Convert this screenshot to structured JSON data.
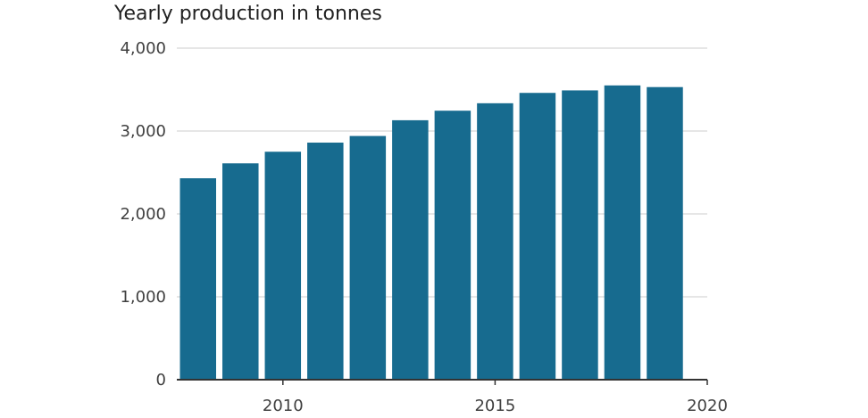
{
  "chart_data": {
    "type": "bar",
    "title": "Yearly production in tonnes",
    "xlabel": "",
    "ylabel": "",
    "categories": [
      "2008",
      "2009",
      "2010",
      "2011",
      "2012",
      "2013",
      "2014",
      "2015",
      "2016",
      "2017",
      "2018",
      "2019"
    ],
    "values": [
      2430,
      2610,
      2750,
      2860,
      2940,
      3130,
      3245,
      3335,
      3460,
      3490,
      3550,
      3530
    ],
    "ylim": [
      0,
      4000
    ],
    "yticks": [
      0,
      1000,
      2000,
      3000,
      4000
    ],
    "ytick_labels": [
      "0",
      "1,000",
      "2,000",
      "3,000",
      "4,000"
    ],
    "xticks": [
      2010,
      2015,
      2020
    ],
    "xtick_labels": [
      "2010",
      "2015",
      "2020"
    ],
    "xlim": [
      2007.5,
      2020
    ],
    "grid": "horizontal",
    "legend": "none",
    "bar_color": "#176b8f",
    "grid_color": "#cccccc",
    "axis_color": "#333333"
  }
}
